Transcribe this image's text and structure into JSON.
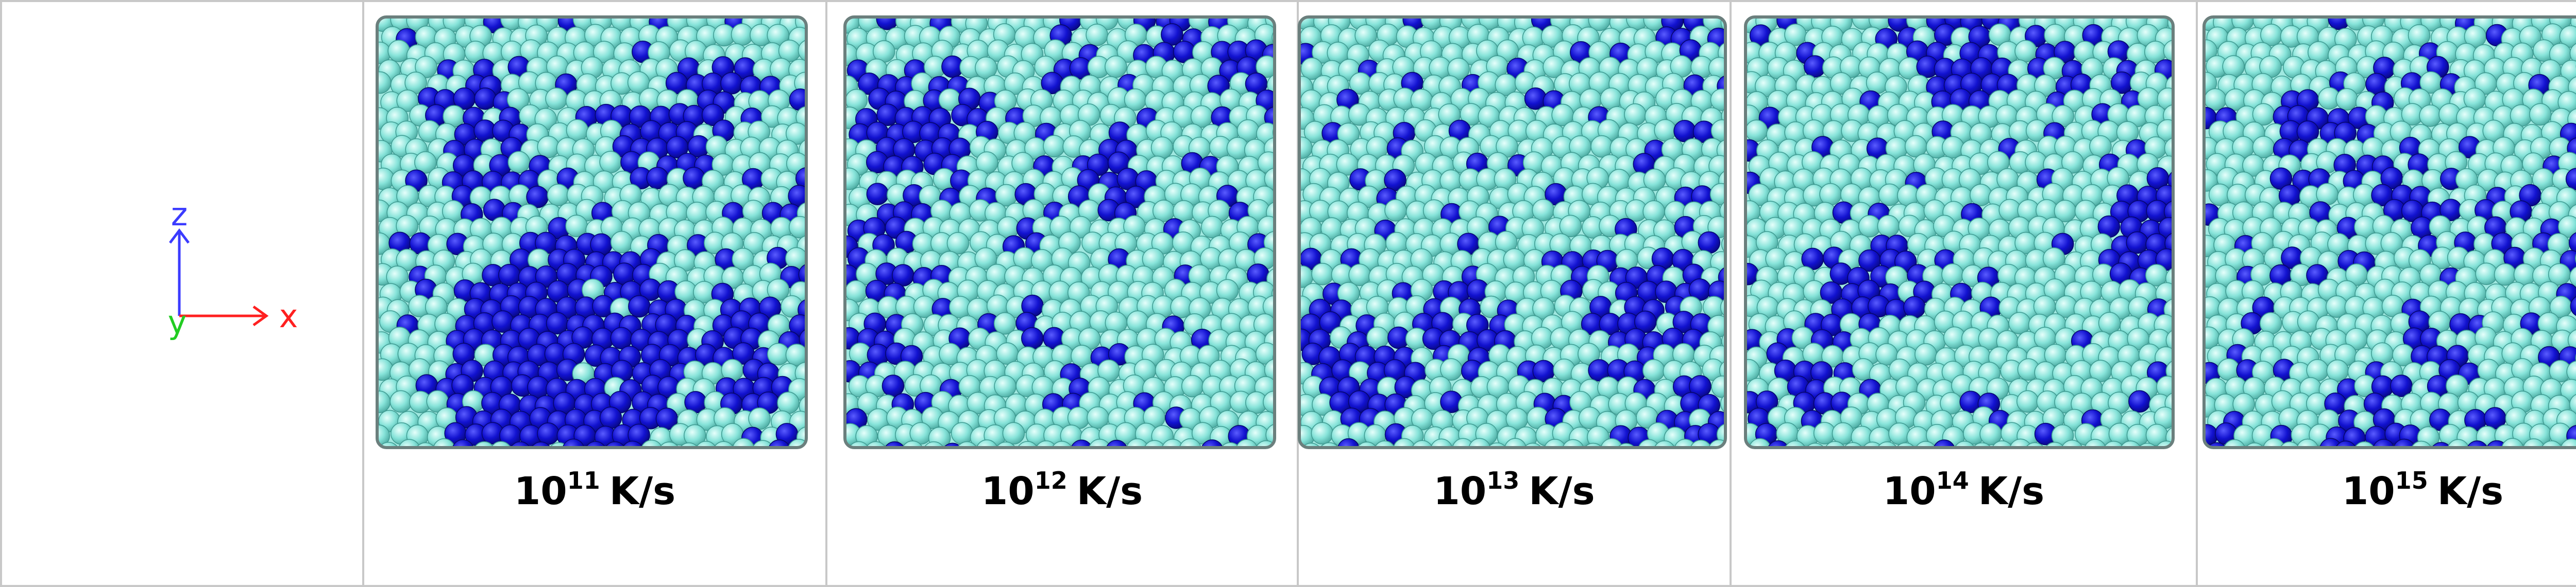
{
  "axes": {
    "z": "z",
    "y": "y",
    "x": "x"
  },
  "panels": [
    {
      "base": "10",
      "exponent": "11",
      "unit": "K/s"
    },
    {
      "base": "10",
      "exponent": "12",
      "unit": "K/s"
    },
    {
      "base": "10",
      "exponent": "13",
      "unit": "K/s"
    },
    {
      "base": "10",
      "exponent": "14",
      "unit": "K/s"
    },
    {
      "base": "10",
      "exponent": "15",
      "unit": "K/s"
    }
  ]
}
